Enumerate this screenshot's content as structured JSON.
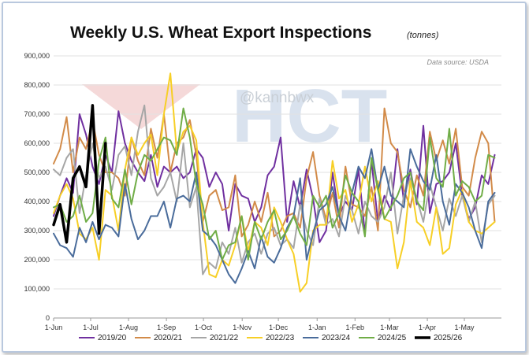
{
  "chart_data": {
    "type": "line",
    "title": "Weekly U.S. Wheat Export Inspections",
    "title_unit": "(tonnes)",
    "source": "Data source: USDA",
    "watermark": {
      "handle": "@kannbwx",
      "logo": "HCT"
    },
    "xlabel": "",
    "ylabel": "",
    "ylim": [
      0,
      900000
    ],
    "y_ticks": [
      "0",
      "100,000",
      "200,000",
      "300,000",
      "400,000",
      "500,000",
      "600,000",
      "700,000",
      "800,000",
      "900,000"
    ],
    "x_ticks": [
      "1-Jun",
      "1-Jul",
      "1-Aug",
      "1-Sep",
      "1-Oct",
      "1-Nov",
      "1-Dec",
      "1-Jan",
      "1-Feb",
      "1-Mar",
      "1-Apr",
      "1-May"
    ],
    "grid": "horizontal",
    "legend_position": "bottom",
    "x_unit": "week of marketing year (week 0 = 1-Jun)",
    "series": [
      {
        "name": "2019/20",
        "color": "#7030a0",
        "width": 2,
        "values": [
          350000,
          420000,
          480000,
          430000,
          700000,
          630000,
          520000,
          460000,
          560000,
          500000,
          710000,
          600000,
          540000,
          500000,
          470000,
          560000,
          450000,
          520000,
          500000,
          520000,
          480000,
          500000,
          580000,
          550000,
          450000,
          500000,
          460000,
          300000,
          460000,
          420000,
          410000,
          330000,
          380000,
          490000,
          520000,
          620000,
          330000,
          470000,
          380000,
          510000,
          410000,
          260000,
          300000,
          500000,
          350000,
          400000,
          370000,
          510000,
          290000,
          540000,
          330000,
          420000,
          370000,
          580000,
          400000,
          510000,
          390000,
          660000,
          360000,
          460000,
          470000,
          500000,
          600000,
          420000,
          340000,
          380000,
          490000,
          460000,
          560000
        ]
      },
      {
        "name": "2020/21",
        "color": "#d28b49",
        "width": 2,
        "values": [
          530000,
          580000,
          690000,
          500000,
          620000,
          580000,
          680000,
          560000,
          500000,
          500000,
          480000,
          420000,
          620000,
          540000,
          490000,
          650000,
          550000,
          700000,
          500000,
          600000,
          620000,
          680000,
          560000,
          330000,
          420000,
          440000,
          370000,
          380000,
          490000,
          280000,
          320000,
          400000,
          330000,
          430000,
          280000,
          300000,
          350000,
          360000,
          310000,
          480000,
          570000,
          420000,
          340000,
          430000,
          310000,
          520000,
          390000,
          380000,
          350000,
          450000,
          300000,
          720000,
          600000,
          570000,
          440000,
          380000,
          490000,
          420000,
          640000,
          540000,
          610000,
          530000,
          650000,
          450000,
          420000,
          550000,
          640000,
          600000,
          330000
        ]
      },
      {
        "name": "2021/22",
        "color": "#a6a6a6",
        "width": 2,
        "values": [
          510000,
          490000,
          550000,
          580000,
          360000,
          490000,
          600000,
          480000,
          520000,
          440000,
          560000,
          590000,
          490000,
          640000,
          730000,
          480000,
          420000,
          450000,
          500000,
          400000,
          600000,
          380000,
          450000,
          150000,
          190000,
          170000,
          260000,
          220000,
          310000,
          190000,
          260000,
          290000,
          220000,
          290000,
          310000,
          250000,
          270000,
          240000,
          390000,
          300000,
          250000,
          410000,
          320000,
          340000,
          280000,
          420000,
          370000,
          290000,
          400000,
          350000,
          330000,
          380000,
          500000,
          290000,
          420000,
          480000,
          410000,
          330000,
          460000,
          380000,
          300000,
          410000,
          350000,
          420000,
          330000,
          400000,
          260000,
          390000,
          420000
        ]
      },
      {
        "name": "2022/23",
        "color": "#f7cf26",
        "width": 2,
        "values": [
          360000,
          420000,
          460000,
          410000,
          290000,
          270000,
          310000,
          200000,
          440000,
          420000,
          300000,
          510000,
          620000,
          560000,
          600000,
          630000,
          490000,
          700000,
          840000,
          570000,
          640000,
          660000,
          610000,
          330000,
          150000,
          140000,
          200000,
          180000,
          250000,
          350000,
          230000,
          330000,
          310000,
          250000,
          380000,
          330000,
          270000,
          220000,
          90000,
          120000,
          300000,
          320000,
          320000,
          540000,
          410000,
          440000,
          330000,
          390000,
          520000,
          400000,
          470000,
          340000,
          330000,
          170000,
          260000,
          470000,
          330000,
          310000,
          250000,
          380000,
          220000,
          240000,
          390000,
          440000,
          330000,
          300000,
          290000,
          310000,
          330000
        ]
      },
      {
        "name": "2023/24",
        "color": "#4a6c9b",
        "width": 2,
        "values": [
          290000,
          250000,
          240000,
          210000,
          310000,
          260000,
          330000,
          270000,
          320000,
          310000,
          280000,
          460000,
          340000,
          270000,
          300000,
          350000,
          350000,
          400000,
          310000,
          410000,
          420000,
          400000,
          500000,
          300000,
          280000,
          250000,
          200000,
          150000,
          120000,
          170000,
          230000,
          170000,
          280000,
          210000,
          190000,
          240000,
          310000,
          350000,
          480000,
          200000,
          290000,
          370000,
          390000,
          450000,
          350000,
          300000,
          430000,
          520000,
          480000,
          580000,
          440000,
          520000,
          420000,
          400000,
          380000,
          580000,
          520000,
          470000,
          440000,
          560000,
          400000,
          320000,
          460000,
          430000,
          380000,
          300000,
          240000,
          400000,
          430000
        ]
      },
      {
        "name": "2024/25",
        "color": "#70ad47",
        "width": 2,
        "values": [
          380000,
          390000,
          330000,
          350000,
          420000,
          330000,
          360000,
          540000,
          620000,
          410000,
          380000,
          510000,
          390000,
          500000,
          560000,
          540000,
          580000,
          620000,
          610000,
          560000,
          720000,
          620000,
          460000,
          390000,
          270000,
          300000,
          200000,
          250000,
          260000,
          350000,
          200000,
          330000,
          270000,
          330000,
          370000,
          270000,
          300000,
          350000,
          290000,
          250000,
          420000,
          380000,
          420000,
          310000,
          360000,
          490000,
          430000,
          400000,
          280000,
          550000,
          440000,
          340000,
          380000,
          420000,
          480000,
          500000,
          400000,
          370000,
          620000,
          480000,
          450000,
          650000,
          420000,
          470000,
          450000,
          400000,
          420000,
          560000,
          550000
        ]
      },
      {
        "name": "2025/26",
        "color": "#000000",
        "width": 3.5,
        "values": [
          320000,
          390000,
          260000,
          480000,
          520000,
          450000,
          730000,
          290000,
          600000
        ]
      }
    ]
  }
}
